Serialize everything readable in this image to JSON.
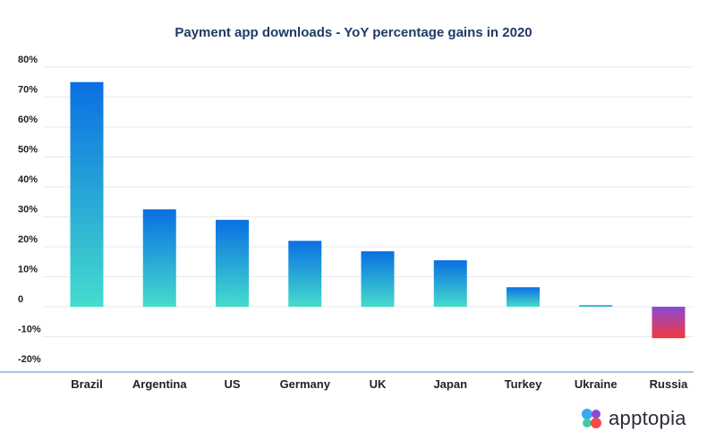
{
  "chart_data": {
    "type": "bar",
    "title": "Payment app downloads - YoY percentage gains in 2020",
    "categories": [
      "Brazil",
      "Argentina",
      "US",
      "Germany",
      "UK",
      "Japan",
      "Turkey",
      "Ukraine",
      "Russia"
    ],
    "values": [
      75,
      32.5,
      29,
      22,
      18.5,
      15.5,
      6.5,
      0.5,
      -10.5
    ],
    "ylim": [
      -20,
      80
    ],
    "yticks": [
      80,
      70,
      60,
      50,
      40,
      30,
      20,
      10,
      0,
      -10,
      -20
    ],
    "ytick_labels": [
      "80%",
      "70%",
      "60%",
      "50%",
      "40%",
      "30%",
      "20%",
      "10%",
      "0",
      "-10%",
      "-20%"
    ],
    "xlabel": "",
    "ylabel": "",
    "grid": true,
    "legend": "none"
  },
  "colors": {
    "positive_top": "#0a6fe2",
    "positive_bottom": "#45dccc",
    "negative_top": "#8b4bd8",
    "negative_bottom": "#f2373c",
    "gridline": "#e6e9ee",
    "baseline_bottom": "#8fb4dc",
    "title": "#1e3a66"
  },
  "brand": {
    "name": "apptopia",
    "icon": "apptopia-logo-icon"
  }
}
